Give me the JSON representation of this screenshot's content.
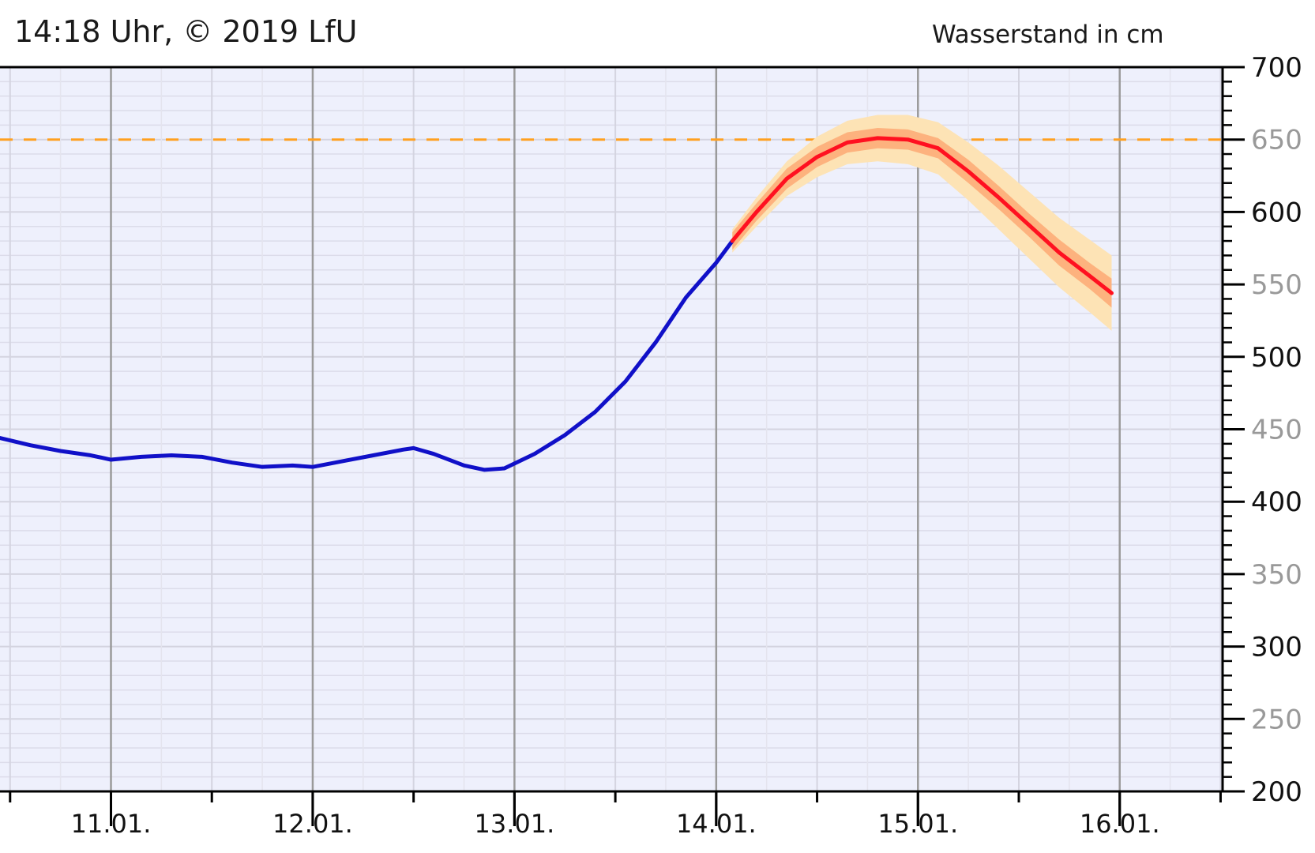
{
  "header": {
    "timestamp": "14:18 Uhr, © 2019 LfU",
    "unit_title": "Wasserstand in cm"
  },
  "colors": {
    "plot_bg": "#eef0fc",
    "measured": "#1010c8",
    "forecast": "#ff1020",
    "band_inner": "#fdb27e",
    "band_outer": "#fde3b5",
    "threshold": "#ffa020"
  },
  "chart_data": {
    "type": "line",
    "ylabel": "Wasserstand in cm",
    "ylim": [
      200,
      700
    ],
    "yticks": [
      200,
      250,
      300,
      350,
      400,
      450,
      500,
      550,
      600,
      650,
      700
    ],
    "ytick_labels": [
      "200",
      "250",
      "300",
      "350",
      "400",
      "450",
      "500",
      "550",
      "600",
      "650",
      "700"
    ],
    "xlim": [
      10.45,
      16.51
    ],
    "xticks": [
      11,
      12,
      13,
      14,
      15,
      16
    ],
    "xtick_labels": [
      "11.01.",
      "12.01.",
      "13.01.",
      "14.01.",
      "15.01.",
      "16.01."
    ],
    "threshold": {
      "value": 650,
      "style": "dashed"
    },
    "grid": true,
    "series": [
      {
        "kind": "measured",
        "x": [
          10.45,
          10.6,
          10.75,
          10.9,
          11.0,
          11.15,
          11.3,
          11.45,
          11.6,
          11.75,
          11.9,
          12.0,
          12.15,
          12.3,
          12.45,
          12.5,
          12.6,
          12.75,
          12.85,
          12.95,
          13.1,
          13.25,
          13.4,
          13.55,
          13.7,
          13.85,
          14.0,
          14.08
        ],
        "y": [
          444,
          439,
          435,
          432,
          429,
          431,
          432,
          431,
          427,
          424,
          425,
          424,
          428,
          432,
          436,
          437,
          433,
          425,
          422,
          423,
          433,
          446,
          462,
          483,
          510,
          541,
          565,
          580
        ]
      },
      {
        "kind": "forecast",
        "x": [
          14.08,
          14.2,
          14.35,
          14.5,
          14.65,
          14.8,
          14.95,
          15.1,
          15.25,
          15.4,
          15.55,
          15.7,
          15.85,
          15.96
        ],
        "y": [
          580,
          600,
          623,
          638,
          648,
          651,
          650,
          644,
          628,
          610,
          591,
          572,
          556,
          544
        ],
        "band_inner": [
          6,
          6,
          7,
          7,
          7,
          7,
          7,
          7,
          8,
          8,
          8,
          9,
          9,
          10
        ],
        "band_outer": [
          8,
          10,
          12,
          14,
          15,
          16,
          17,
          18,
          20,
          22,
          23,
          24,
          25,
          26
        ]
      }
    ]
  }
}
